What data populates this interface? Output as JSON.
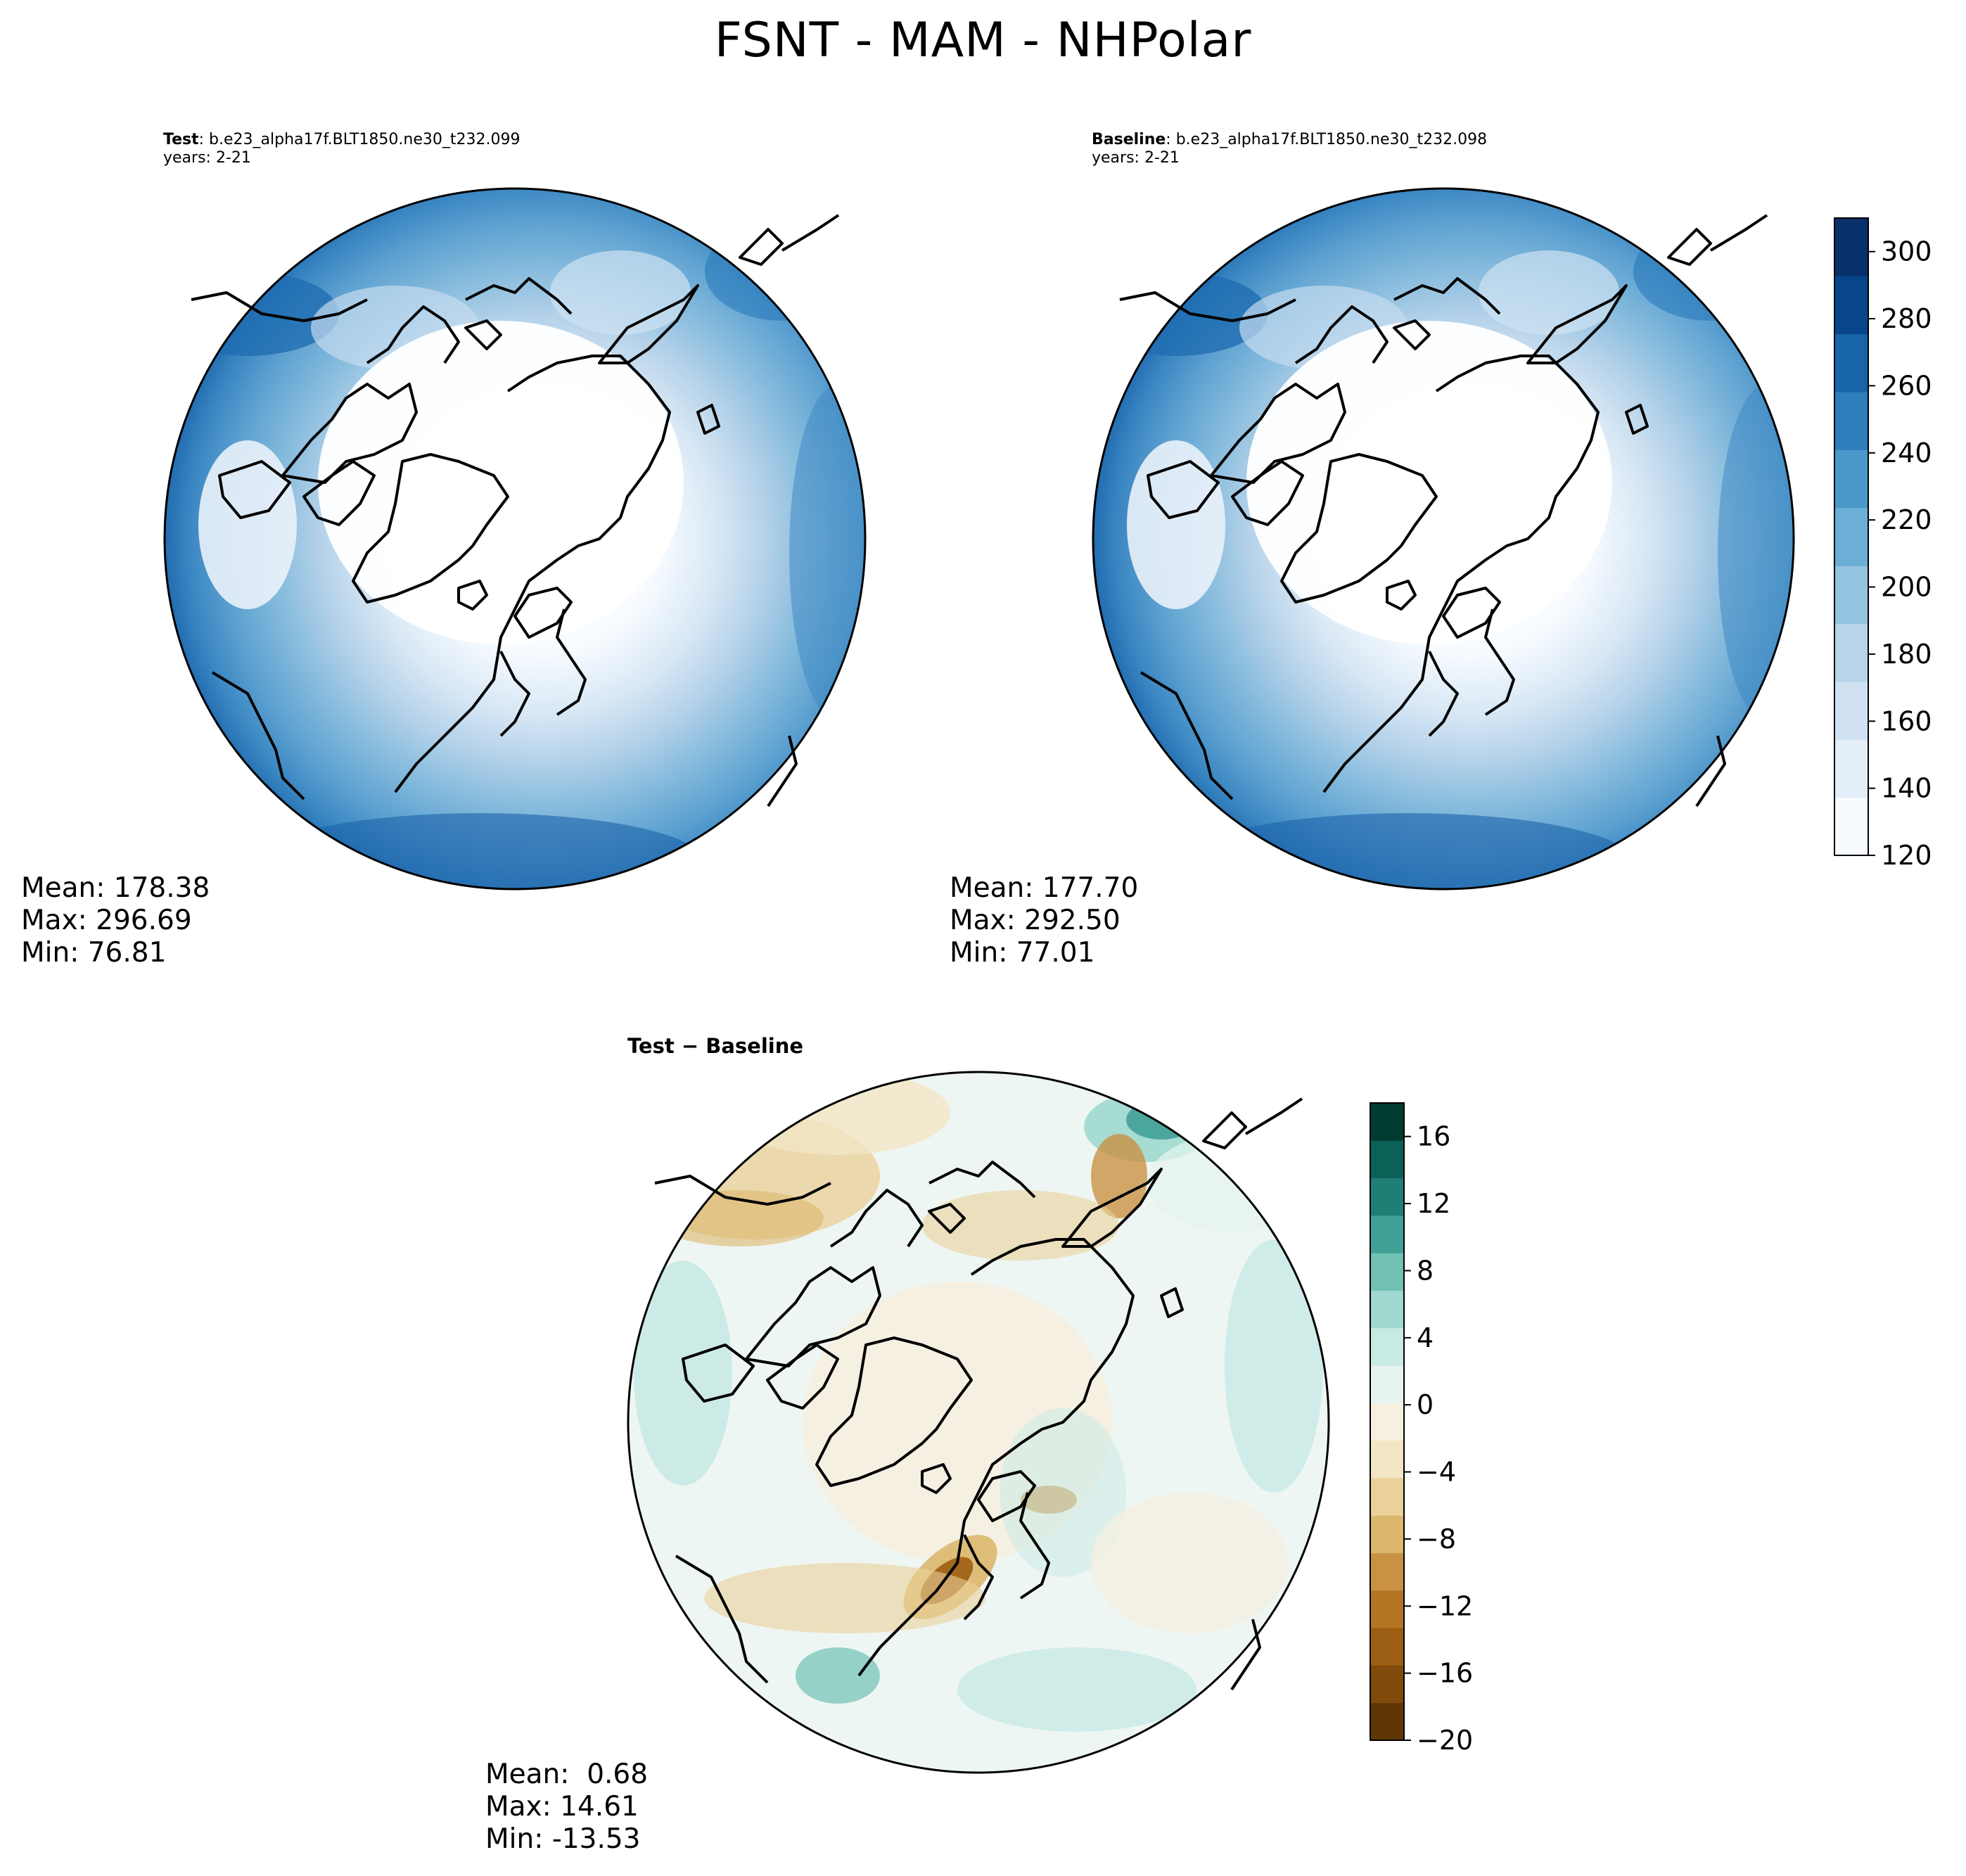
{
  "suptitle": "FSNT - MAM - NHPolar",
  "panels": {
    "test": {
      "label": "Test",
      "case": ": b.e23_alpha17f.BLT1850.ne30_t232.099",
      "years": "years: 2-21",
      "stats": {
        "mean": "Mean: 178.38",
        "max": "Max: 296.69",
        "min": "Min: 76.81"
      }
    },
    "baseline": {
      "label": "Baseline",
      "case": ": b.e23_alpha17f.BLT1850.ne30_t232.098",
      "years": "years: 2-21",
      "stats": {
        "mean": "Mean: 177.70",
        "max": "Max: 292.50",
        "min": "Min: 77.01"
      }
    },
    "diff": {
      "title": "Test − Baseline",
      "stats": {
        "mean": "Mean:  0.68",
        "max": "Max: 14.61",
        "min": "Min: -13.53"
      }
    }
  },
  "chart_data": [
    {
      "type": "heatmap",
      "projection": "north polar stereographic",
      "panel": "Test",
      "colormap": "Blues",
      "colorbar": {
        "range": [
          120,
          310
        ],
        "ticks": [
          120,
          140,
          160,
          180,
          200,
          220,
          240,
          260,
          280,
          300
        ],
        "tick_labels": [
          "120",
          "140",
          "160",
          "180",
          "200",
          "220",
          "240",
          "260",
          "280",
          "300"
        ],
        "colors": [
          "#f7fbff",
          "#e3eef9",
          "#d0e1f2",
          "#b7d4ea",
          "#94c4df",
          "#6baed6",
          "#4a98c9",
          "#2e7ebc",
          "#1764ab",
          "#08468b",
          "#08306b"
        ]
      },
      "stats": {
        "mean": 178.38,
        "max": 296.69,
        "min": 76.81
      }
    },
    {
      "type": "heatmap",
      "projection": "north polar stereographic",
      "panel": "Baseline",
      "colormap": "Blues",
      "colorbar": "shared with Test",
      "stats": {
        "mean": 177.7,
        "max": 292.5,
        "min": 77.01
      }
    },
    {
      "type": "heatmap",
      "projection": "north polar stereographic",
      "panel": "Test − Baseline",
      "colormap": "BrBG",
      "colorbar": {
        "range": [
          -20,
          18
        ],
        "ticks": [
          -20,
          -16,
          -12,
          -8,
          -4,
          0,
          4,
          8,
          12,
          16
        ],
        "tick_labels": [
          "−20",
          "−16",
          "−12",
          "−8",
          "−4",
          "0",
          "4",
          "8",
          "12",
          "16"
        ],
        "colors": [
          "#5f3707",
          "#7f4a0a",
          "#9c5e12",
          "#b57424",
          "#c99243",
          "#dcb76e",
          "#ead19a",
          "#f2e6c4",
          "#f5f0e0",
          "#e6f3f0",
          "#c8eae5",
          "#9fd9cf",
          "#71c2b5",
          "#41a197",
          "#1f7f76",
          "#0b6158",
          "#003c30"
        ]
      },
      "stats": {
        "mean": 0.68,
        "max": 14.61,
        "min": -13.53
      }
    }
  ]
}
